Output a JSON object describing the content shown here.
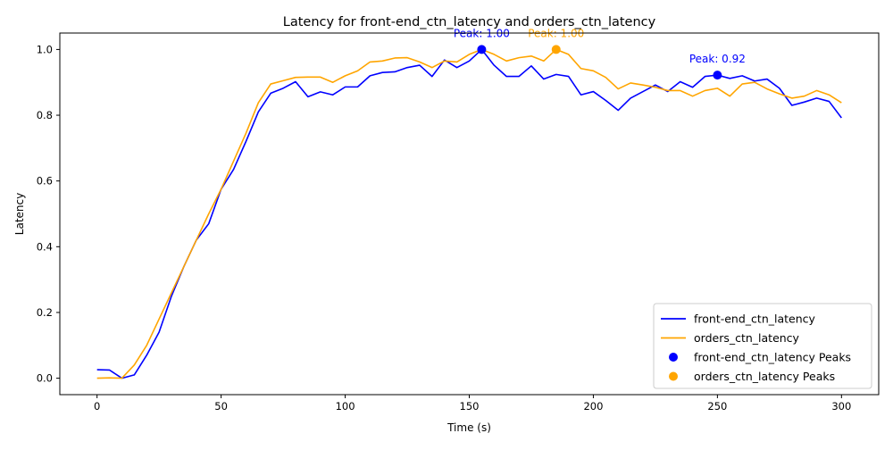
{
  "chart_data": {
    "type": "line",
    "title": "Latency for front-end_ctn_latency and orders_ctn_latency",
    "xlabel": "Time (s)",
    "ylabel": "Latency",
    "xlim": [
      -15,
      315
    ],
    "ylim": [
      -0.05,
      1.05
    ],
    "xticks": [
      0,
      50,
      100,
      150,
      200,
      250,
      300
    ],
    "yticks": [
      0.0,
      0.2,
      0.4,
      0.6,
      0.8,
      1.0
    ],
    "xtick_labels": [
      "0",
      "50",
      "100",
      "150",
      "200",
      "250",
      "300"
    ],
    "ytick_labels": [
      "0.0",
      "0.2",
      "0.4",
      "0.6",
      "0.8",
      "1.0"
    ],
    "grid": false,
    "legend_position": "lower-right",
    "x": [
      0,
      5,
      10,
      15,
      20,
      25,
      30,
      35,
      40,
      45,
      50,
      55,
      60,
      65,
      70,
      75,
      80,
      85,
      90,
      95,
      100,
      105,
      110,
      115,
      120,
      125,
      130,
      135,
      140,
      145,
      150,
      155,
      160,
      165,
      170,
      175,
      180,
      185,
      190,
      195,
      200,
      205,
      210,
      215,
      220,
      225,
      230,
      235,
      240,
      245,
      250,
      255,
      260,
      265,
      270,
      275,
      280,
      285,
      290,
      295,
      300
    ],
    "series": [
      {
        "name": "front-end_ctn_latency",
        "color": "#0000ff",
        "values": [
          0.026,
          0.025,
          0.0,
          0.01,
          0.07,
          0.14,
          0.25,
          0.34,
          0.42,
          0.47,
          0.575,
          0.635,
          0.72,
          0.81,
          0.867,
          0.882,
          0.902,
          0.856,
          0.871,
          0.862,
          0.886,
          0.886,
          0.92,
          0.93,
          0.932,
          0.945,
          0.952,
          0.918,
          0.968,
          0.945,
          0.965,
          1.0,
          0.952,
          0.918,
          0.918,
          0.95,
          0.91,
          0.924,
          0.918,
          0.862,
          0.872,
          0.845,
          0.815,
          0.852,
          0.872,
          0.892,
          0.872,
          0.902,
          0.885,
          0.918,
          0.922,
          0.912,
          0.92,
          0.904,
          0.91,
          0.882,
          0.83,
          0.84,
          0.852,
          0.842,
          0.792
        ]
      },
      {
        "name": "orders_ctn_latency",
        "color": "#ffa500",
        "values": [
          0.0,
          0.001,
          0.0,
          0.04,
          0.1,
          0.18,
          0.26,
          0.34,
          0.42,
          0.5,
          0.575,
          0.66,
          0.745,
          0.838,
          0.895,
          0.905,
          0.915,
          0.916,
          0.916,
          0.9,
          0.92,
          0.935,
          0.962,
          0.965,
          0.974,
          0.975,
          0.962,
          0.945,
          0.965,
          0.962,
          0.985,
          1.0,
          0.985,
          0.965,
          0.975,
          0.98,
          0.965,
          1.0,
          0.985,
          0.942,
          0.935,
          0.915,
          0.88,
          0.898,
          0.892,
          0.885,
          0.875,
          0.875,
          0.858,
          0.875,
          0.882,
          0.858,
          0.895,
          0.9,
          0.88,
          0.865,
          0.852,
          0.858,
          0.875,
          0.862,
          0.838
        ]
      }
    ],
    "peaks": [
      {
        "series": "front-end_ctn_latency",
        "name": "front-end_ctn_latency Peaks",
        "x": 155,
        "y": 1.0,
        "label": "Peak: 1.00",
        "color": "#0000ff"
      },
      {
        "series": "orders_ctn_latency",
        "name": "orders_ctn_latency Peaks",
        "x": 185,
        "y": 1.0,
        "label": "Peak: 1.00",
        "color": "#ffa500"
      },
      {
        "series": "front-end_ctn_latency",
        "name": "front-end_ctn_latency Peaks",
        "x": 250,
        "y": 0.922,
        "label": "Peak: 0.92",
        "color": "#0000ff"
      }
    ],
    "legend": [
      {
        "label": "front-end_ctn_latency",
        "kind": "line",
        "color": "#0000ff"
      },
      {
        "label": "orders_ctn_latency",
        "kind": "line",
        "color": "#ffa500"
      },
      {
        "label": "front-end_ctn_latency Peaks",
        "kind": "marker",
        "color": "#0000ff"
      },
      {
        "label": "orders_ctn_latency Peaks",
        "kind": "marker",
        "color": "#ffa500"
      }
    ]
  }
}
